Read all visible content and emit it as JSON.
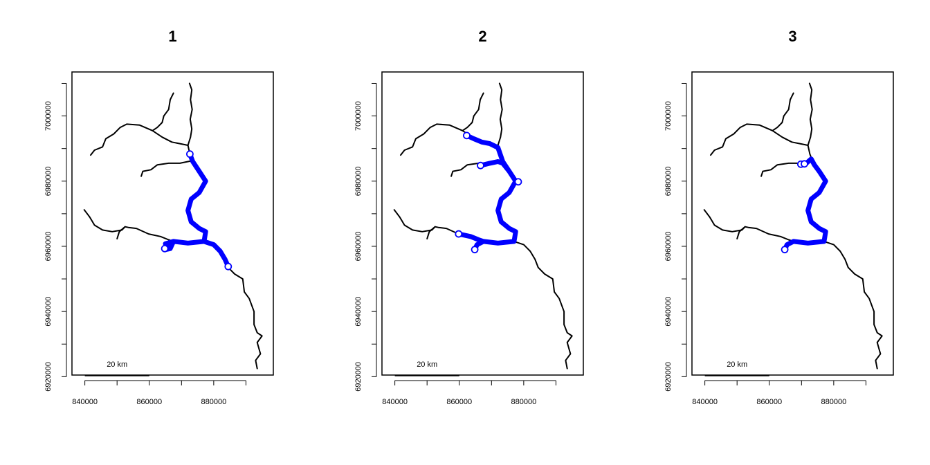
{
  "chart_data": [
    {
      "type": "line",
      "title": "1",
      "xlabel": "",
      "ylabel": "",
      "xlim": [
        836000,
        898500
      ],
      "ylim": [
        6920500,
        7013500
      ],
      "xticks": [
        840000,
        850000,
        860000,
        870000,
        880000,
        890000
      ],
      "xtick_labels": [
        "840000",
        "",
        "860000",
        "",
        "880000",
        ""
      ],
      "yticks": [
        6920000,
        6930000,
        6940000,
        6950000,
        6960000,
        6970000,
        6980000,
        6990000,
        7000000,
        7010000
      ],
      "ytick_labels": [
        "6920000",
        "",
        "6940000",
        "",
        "6960000",
        "",
        "6980000",
        "",
        "7000000",
        ""
      ],
      "scale_bar": {
        "label": "20 km",
        "x": [
          840000,
          860000
        ],
        "y": 6920300
      },
      "highlight_color": "#0000ff",
      "highlight_path": [
        [
          872600,
          6988300
        ],
        [
          873500,
          6986000
        ],
        [
          875500,
          6983000
        ],
        [
          877500,
          6980000
        ],
        [
          875500,
          6976500
        ],
        [
          873000,
          6974500
        ],
        [
          872000,
          6971000
        ],
        [
          873000,
          6967500
        ],
        [
          875500,
          6965500
        ],
        [
          877500,
          6964500
        ],
        [
          877000,
          6961500
        ],
        [
          872000,
          6961000
        ],
        [
          867500,
          6961500
        ],
        [
          865000,
          6960800
        ],
        [
          866500,
          6959300
        ],
        [
          865000,
          6959000
        ],
        [
          864800,
          6959300
        ],
        [
          866500,
          6959300
        ],
        [
          867500,
          6961500
        ],
        [
          872000,
          6961000
        ],
        [
          877000,
          6961500
        ],
        [
          880000,
          6960500
        ],
        [
          882000,
          6958500
        ],
        [
          883500,
          6956000
        ],
        [
          884500,
          6953800
        ]
      ],
      "sites": [
        [
          872600,
          6988300
        ],
        [
          864800,
          6959300
        ],
        [
          884500,
          6953800
        ]
      ]
    },
    {
      "type": "line",
      "title": "2",
      "xlabel": "",
      "ylabel": "",
      "xlim": [
        836000,
        898500
      ],
      "ylim": [
        6920500,
        7013500
      ],
      "xticks": [
        840000,
        850000,
        860000,
        870000,
        880000,
        890000
      ],
      "xtick_labels": [
        "840000",
        "",
        "860000",
        "",
        "880000",
        ""
      ],
      "yticks": [
        6920000,
        6930000,
        6940000,
        6950000,
        6960000,
        6970000,
        6980000,
        6990000,
        7000000,
        7010000
      ],
      "ytick_labels": [
        "6920000",
        "",
        "6940000",
        "",
        "6960000",
        "",
        "6980000",
        "",
        "7000000",
        ""
      ],
      "scale_bar": {
        "label": "20 km",
        "x": [
          840000,
          860000
        ],
        "y": 6920300
      },
      "highlight_color": "#0000ff",
      "highlight_path": [
        [
          862300,
          6994000
        ],
        [
          864500,
          6993000
        ],
        [
          867000,
          6992000
        ],
        [
          869500,
          6991500
        ],
        [
          872000,
          6990300
        ],
        [
          873500,
          6986000
        ],
        [
          875500,
          6983000
        ],
        [
          877500,
          6980000
        ],
        [
          875500,
          6976500
        ],
        [
          873000,
          6974500
        ],
        [
          872000,
          6971000
        ],
        [
          873000,
          6967500
        ],
        [
          875500,
          6965500
        ],
        [
          877500,
          6964500
        ],
        [
          877000,
          6961500
        ],
        [
          872000,
          6961000
        ],
        [
          867500,
          6961500
        ],
        [
          865500,
          6960500
        ],
        [
          864800,
          6959000
        ],
        [
          865500,
          6960500
        ],
        [
          867500,
          6961500
        ],
        [
          866000,
          6962000
        ],
        [
          863500,
          6963000
        ],
        [
          859800,
          6963800
        ],
        [
          863500,
          6963000
        ],
        [
          866000,
          6962000
        ],
        [
          867500,
          6961500
        ],
        [
          872000,
          6961000
        ],
        [
          877000,
          6961500
        ],
        [
          877500,
          6964500
        ],
        [
          875500,
          6965500
        ],
        [
          873000,
          6967500
        ],
        [
          872000,
          6971000
        ],
        [
          873000,
          6974500
        ],
        [
          875500,
          6976500
        ],
        [
          877500,
          6980000
        ],
        [
          878300,
          6979800
        ],
        [
          877500,
          6980000
        ],
        [
          875500,
          6983000
        ],
        [
          873500,
          6985500
        ],
        [
          872000,
          6986000
        ],
        [
          869500,
          6985500
        ],
        [
          866600,
          6984800
        ]
      ],
      "sites": [
        [
          862300,
          6994000
        ],
        [
          866600,
          6984800
        ],
        [
          878300,
          6979800
        ],
        [
          859800,
          6963800
        ],
        [
          864800,
          6959000
        ]
      ]
    },
    {
      "type": "line",
      "title": "3",
      "xlabel": "",
      "ylabel": "",
      "xlim": [
        836000,
        898500
      ],
      "ylim": [
        6920500,
        7013500
      ],
      "xticks": [
        840000,
        850000,
        860000,
        870000,
        880000,
        890000
      ],
      "xtick_labels": [
        "840000",
        "",
        "860000",
        "",
        "880000",
        ""
      ],
      "yticks": [
        6920000,
        6930000,
        6940000,
        6950000,
        6960000,
        6970000,
        6980000,
        6990000,
        7000000,
        7010000
      ],
      "ytick_labels": [
        "6920000",
        "",
        "6940000",
        "",
        "6960000",
        "",
        "6980000",
        "",
        "7000000",
        ""
      ],
      "scale_bar": {
        "label": "20 km",
        "x": [
          840000,
          860000
        ],
        "y": 6920300
      },
      "highlight_color": "#0000ff",
      "highlight_path": [
        [
          869800,
          6985200
        ],
        [
          871500,
          6985500
        ],
        [
          873000,
          6986800
        ],
        [
          874000,
          6985000
        ],
        [
          875500,
          6983000
        ],
        [
          877500,
          6980000
        ],
        [
          875500,
          6976500
        ],
        [
          873000,
          6974500
        ],
        [
          872000,
          6971000
        ],
        [
          873000,
          6967500
        ],
        [
          875500,
          6965500
        ],
        [
          877500,
          6964500
        ],
        [
          877000,
          6961500
        ],
        [
          872000,
          6961000
        ],
        [
          867500,
          6961500
        ],
        [
          865500,
          6960500
        ],
        [
          864800,
          6959000
        ]
      ],
      "sites": [
        [
          869800,
          6985200
        ],
        [
          870900,
          6985300
        ],
        [
          864800,
          6959000
        ]
      ]
    }
  ],
  "river_network": {
    "main_stem": [
      [
        872500,
        7010000
      ],
      [
        873200,
        7008000
      ],
      [
        872800,
        7005000
      ],
      [
        873300,
        7002000
      ],
      [
        872700,
        6999000
      ],
      [
        873200,
        6996000
      ],
      [
        872800,
        6993500
      ],
      [
        872000,
        6991000
      ],
      [
        872600,
        6988300
      ],
      [
        873500,
        6986000
      ],
      [
        875500,
        6983000
      ],
      [
        877500,
        6980000
      ],
      [
        875500,
        6976500
      ],
      [
        873000,
        6974500
      ],
      [
        872000,
        6971000
      ],
      [
        873000,
        6967500
      ],
      [
        875500,
        6965500
      ],
      [
        877500,
        6964500
      ],
      [
        877000,
        6961500
      ],
      [
        880000,
        6960500
      ],
      [
        882000,
        6958500
      ],
      [
        883500,
        6956000
      ],
      [
        884500,
        6953500
      ],
      [
        886500,
        6951500
      ],
      [
        889000,
        6950000
      ],
      [
        889500,
        6946000
      ],
      [
        891000,
        6944000
      ],
      [
        892500,
        6940000
      ],
      [
        892500,
        6936000
      ],
      [
        893500,
        6933500
      ],
      [
        895000,
        6932500
      ],
      [
        893500,
        6930500
      ],
      [
        894500,
        6927000
      ],
      [
        893000,
        6925000
      ],
      [
        893500,
        6922500
      ]
    ],
    "north_tributary": [
      [
        867500,
        7007000
      ],
      [
        866500,
        7005000
      ],
      [
        866000,
        7002000
      ],
      [
        864500,
        7000000
      ],
      [
        864000,
        6998000
      ],
      [
        862500,
        6996500
      ],
      [
        861000,
        6995500
      ]
    ],
    "west_tributary": [
      [
        841800,
        6988000
      ],
      [
        843000,
        6989500
      ],
      [
        845500,
        6990500
      ],
      [
        846500,
        6993000
      ],
      [
        849000,
        6994500
      ],
      [
        851000,
        6996500
      ],
      [
        853000,
        6997500
      ],
      [
        857000,
        6997200
      ],
      [
        861000,
        6995500
      ],
      [
        864000,
        6993500
      ],
      [
        867000,
        6992000
      ],
      [
        869500,
        6991500
      ],
      [
        872000,
        6991000
      ]
    ],
    "mid_tributary": [
      [
        857500,
        6981500
      ],
      [
        858000,
        6983000
      ],
      [
        860500,
        6983500
      ],
      [
        862500,
        6985000
      ],
      [
        866000,
        6985500
      ],
      [
        869500,
        6985500
      ],
      [
        872000,
        6986000
      ],
      [
        873500,
        6986300
      ]
    ],
    "southwest_tributary": [
      [
        839800,
        6971200
      ],
      [
        841500,
        6969000
      ],
      [
        843000,
        6966500
      ],
      [
        845500,
        6965000
      ],
      [
        848500,
        6964500
      ],
      [
        851500,
        6965000
      ],
      [
        852500,
        6966000
      ],
      [
        853500,
        6965800
      ],
      [
        856000,
        6965500
      ],
      [
        859800,
        6963800
      ],
      [
        863500,
        6963000
      ],
      [
        866000,
        6962000
      ],
      [
        867500,
        6961500
      ],
      [
        872000,
        6961000
      ],
      [
        877000,
        6961500
      ]
    ],
    "southwest_spur": [
      [
        850000,
        6962300
      ],
      [
        850700,
        6964500
      ],
      [
        852500,
        6966000
      ]
    ],
    "stub": [
      [
        864800,
        6959000
      ],
      [
        865500,
        6960500
      ],
      [
        867500,
        6961500
      ]
    ]
  },
  "styles": {
    "river_color": "#000000",
    "highlight_color": "#0000ff",
    "site_fill": "#ffffff"
  }
}
